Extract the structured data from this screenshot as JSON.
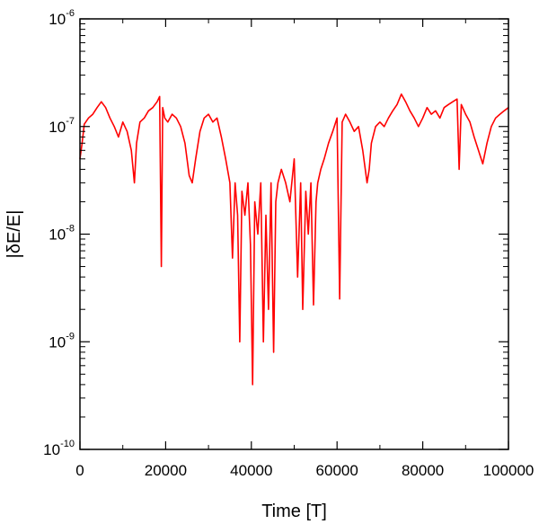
{
  "chart_data": {
    "type": "line",
    "title": "",
    "xlabel": "Time [T]",
    "ylabel": "|δE/E|",
    "xlim": [
      0,
      100000
    ],
    "ylim": [
      1e-10,
      1e-06
    ],
    "yscale": "log",
    "grid": false,
    "legend": "none",
    "x_ticks": [
      "0",
      "20000",
      "40000",
      "60000",
      "80000",
      "100000"
    ],
    "x_tick_values": [
      0,
      20000,
      40000,
      60000,
      80000,
      100000
    ],
    "y_ticks": [
      {
        "base": "10",
        "exp": "-10",
        "value": 1e-10
      },
      {
        "base": "10",
        "exp": "-9",
        "value": 1e-09
      },
      {
        "base": "10",
        "exp": "-8",
        "value": 1e-08
      },
      {
        "base": "10",
        "exp": "-7",
        "value": 1e-07
      },
      {
        "base": "10",
        "exp": "-6",
        "value": 1e-06
      }
    ],
    "series": [
      {
        "color": "#ff0000",
        "x": [
          0,
          500,
          1000,
          2000,
          3000,
          4000,
          5000,
          6000,
          7000,
          8000,
          9000,
          10000,
          11000,
          12000,
          12700,
          13200,
          14000,
          15000,
          16000,
          17000,
          18000,
          18600,
          19000,
          19300,
          19800,
          20500,
          21500,
          22500,
          23500,
          24500,
          25500,
          26200,
          27000,
          28000,
          29000,
          30000,
          31000,
          32000,
          33000,
          34000,
          35000,
          35600,
          36200,
          36800,
          37300,
          37800,
          38500,
          39200,
          39800,
          40300,
          40800,
          41500,
          42200,
          42800,
          43400,
          44000,
          44600,
          45200,
          45700,
          46200,
          47000,
          48000,
          49000,
          50000,
          50800,
          51500,
          52000,
          52700,
          53300,
          53900,
          54500,
          55100,
          55500,
          56200,
          57000,
          58000,
          59000,
          60000,
          60600,
          61200,
          62000,
          63000,
          64000,
          65000,
          66000,
          67000,
          67500,
          68000,
          69000,
          70000,
          71000,
          72000,
          73000,
          74000,
          75000,
          76000,
          77000,
          78000,
          79000,
          80000,
          81000,
          82000,
          83000,
          84000,
          85000,
          86000,
          87000,
          88000,
          88500,
          89000,
          90000,
          91000,
          92000,
          93000,
          94000,
          95000,
          96000,
          97000,
          98000,
          99000,
          100000
        ],
        "y": [
          5e-08,
          7e-08,
          1.05e-07,
          1.2e-07,
          1.3e-07,
          1.5e-07,
          1.7e-07,
          1.5e-07,
          1.2e-07,
          1e-07,
          8e-08,
          1.1e-07,
          9e-08,
          6e-08,
          3e-08,
          7e-08,
          1.1e-07,
          1.2e-07,
          1.4e-07,
          1.5e-07,
          1.7e-07,
          1.9e-07,
          5e-09,
          1.5e-07,
          1.2e-07,
          1.1e-07,
          1.3e-07,
          1.2e-07,
          1e-07,
          7e-08,
          3.5e-08,
          3e-08,
          5e-08,
          9e-08,
          1.2e-07,
          1.3e-07,
          1.1e-07,
          1.2e-07,
          8e-08,
          5e-08,
          3e-08,
          6e-09,
          3e-08,
          1.5e-08,
          1e-09,
          2.5e-08,
          1.5e-08,
          3e-08,
          8e-09,
          4e-10,
          2e-08,
          1e-08,
          3e-08,
          1e-09,
          1.5e-08,
          2e-09,
          3e-08,
          8e-10,
          2e-08,
          3e-08,
          4e-08,
          3e-08,
          2e-08,
          5e-08,
          4e-09,
          3e-08,
          2e-09,
          2.5e-08,
          1e-08,
          3e-08,
          2.2e-09,
          2e-08,
          3e-08,
          4e-08,
          5e-08,
          7e-08,
          9e-08,
          1.2e-07,
          2.5e-09,
          1.1e-07,
          1.3e-07,
          1.1e-07,
          9e-08,
          1e-07,
          6e-08,
          3e-08,
          4e-08,
          7e-08,
          1e-07,
          1.1e-07,
          1e-07,
          1.2e-07,
          1.4e-07,
          1.6e-07,
          2e-07,
          1.7e-07,
          1.4e-07,
          1.2e-07,
          1e-07,
          1.2e-07,
          1.5e-07,
          1.3e-07,
          1.4e-07,
          1.2e-07,
          1.5e-07,
          1.6e-07,
          1.7e-07,
          1.8e-07,
          4e-08,
          1.6e-07,
          1.3e-07,
          1.1e-07,
          8e-08,
          6e-08,
          4.5e-08,
          7e-08,
          1e-07,
          1.2e-07,
          1.3e-07,
          1.4e-07,
          1.5e-07
        ]
      }
    ]
  }
}
